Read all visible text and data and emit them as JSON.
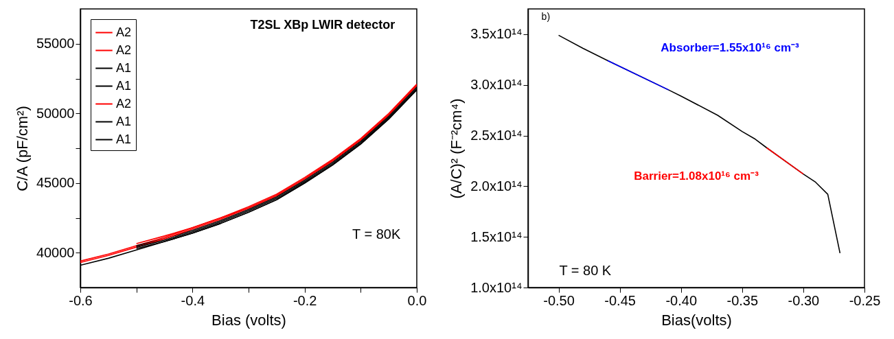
{
  "chart_data": [
    {
      "type": "line",
      "xlabel": "Bias (volts)",
      "ylabel": "C/A (pF/cm²)",
      "annotations": [
        "T2SL XBp LWIR detector",
        "T = 80K"
      ],
      "xlim": [
        -0.6,
        0
      ],
      "xticks": [
        -0.6,
        {
          "value": -0.5,
          "label": null
        },
        -0.4,
        {
          "value": -0.3,
          "label": null
        },
        -0.2,
        {
          "value": -0.1,
          "label": null
        },
        {
          "value": 0,
          "label": "0.0"
        }
      ],
      "ylim": [
        37500,
        57500
      ],
      "yticks": [
        40000,
        {
          "value": 42500,
          "label": null
        },
        45000,
        {
          "value": 47500,
          "label": null
        },
        50000,
        {
          "value": 52500,
          "label": null
        },
        55000
      ],
      "grid": false,
      "legend": "top left",
      "line_style": "solid",
      "marker": "none",
      "series": [
        {
          "name": "A2",
          "color": "#ff0000",
          "x": [
            -0.6,
            -0.55,
            -0.5,
            -0.45,
            -0.4,
            -0.35,
            -0.3,
            -0.25,
            -0.2,
            -0.15,
            -0.1,
            -0.05,
            0
          ],
          "values": [
            39400,
            39900,
            40500,
            41100,
            41800,
            42500,
            43300,
            44200,
            45400,
            46700,
            48200,
            50000,
            52100
          ]
        },
        {
          "name": "A2",
          "color": "#ff0000",
          "x": [
            -0.5,
            -0.45,
            -0.4,
            -0.35,
            -0.3,
            -0.25,
            -0.2,
            -0.15,
            -0.1,
            -0.05,
            0
          ],
          "values": [
            40650,
            41200,
            41800,
            42500,
            43200,
            44100,
            45300,
            46600,
            48100,
            49900,
            52000
          ]
        },
        {
          "name": "A1",
          "color": "#000000",
          "x": [
            -0.6,
            -0.55,
            -0.5,
            -0.45,
            -0.4,
            -0.35,
            -0.3,
            -0.25,
            -0.2,
            -0.15,
            -0.1,
            -0.05,
            0
          ],
          "values": [
            39100,
            39600,
            40200,
            40800,
            41400,
            42100,
            42900,
            43800,
            45000,
            46300,
            47800,
            49600,
            51700
          ]
        },
        {
          "name": "A1",
          "color": "#000000",
          "x": [
            -0.5,
            -0.45,
            -0.4,
            -0.35,
            -0.3,
            -0.25,
            -0.2,
            -0.15,
            -0.1,
            -0.05,
            0
          ],
          "values": [
            40500,
            41000,
            41600,
            42300,
            43100,
            44000,
            45200,
            46500,
            48000,
            49800,
            51900
          ]
        },
        {
          "name": "A2",
          "color": "#ff0000",
          "x": [
            -0.6,
            -0.55,
            -0.5,
            -0.45,
            -0.4,
            -0.35,
            -0.3,
            -0.25,
            -0.2,
            -0.15,
            -0.1,
            -0.05,
            0
          ],
          "values": [
            39300,
            39800,
            40400,
            41000,
            41700,
            42400,
            43200,
            44100,
            45300,
            46600,
            48100,
            49900,
            52000
          ]
        },
        {
          "name": "A1",
          "color": "#000000",
          "x": [
            -0.5,
            -0.45,
            -0.4,
            -0.35,
            -0.3,
            -0.25,
            -0.2,
            -0.15,
            -0.1,
            -0.05,
            0
          ],
          "values": [
            40300,
            40800,
            41400,
            42100,
            42900,
            43800,
            45000,
            46300,
            47800,
            49600,
            51700
          ]
        },
        {
          "name": "A1",
          "color": "#000000",
          "x": [
            -0.5,
            -0.45,
            -0.4,
            -0.35,
            -0.3,
            -0.25,
            -0.2,
            -0.15,
            -0.1,
            -0.05,
            0
          ],
          "values": [
            40400,
            40900,
            41500,
            42200,
            43000,
            43900,
            45100,
            46400,
            47900,
            49700,
            51800
          ]
        }
      ]
    },
    {
      "type": "line",
      "xlabel": "Bias(volts)",
      "ylabel": "(A/C)² (F⁻²cm⁴)",
      "annotations": [
        "b)",
        "Absorber=1.55x10¹⁶ cm⁻³",
        "Barrier=1.08x10¹⁶ cm⁻³",
        "T = 80 K"
      ],
      "xlim": [
        -0.525,
        -0.25
      ],
      "xticks": [
        {
          "value": -0.5,
          "label": "-0.50"
        },
        -0.45,
        {
          "value": -0.4,
          "label": "-0.40"
        },
        -0.35,
        {
          "value": -0.3,
          "label": "-0.30"
        },
        -0.25
      ],
      "ylim": [
        100000000000000.0,
        375000000000000.0
      ],
      "yticks": [
        {
          "value": 100000000000000.0,
          "label": "1.0x10¹⁴"
        },
        {
          "value": 150000000000000.0,
          "label": "1.5x10¹⁴"
        },
        {
          "value": 200000000000000.0,
          "label": "2.0x10¹⁴"
        },
        {
          "value": 250000000000000.0,
          "label": "2.5x10¹⁴"
        },
        {
          "value": 300000000000000.0,
          "label": "3.0x10¹⁴"
        },
        {
          "value": 350000000000000.0,
          "label": "3.5x10¹⁴"
        }
      ],
      "grid": false,
      "legend": false,
      "line_style": "solid",
      "marker": "none",
      "series": [
        {
          "color": "#000000",
          "x": [
            -0.5,
            -0.48,
            -0.46,
            -0.41,
            -0.4,
            -0.37,
            -0.35,
            -0.34,
            -0.33,
            -0.3,
            -0.29,
            -0.28,
            -0.27
          ],
          "values": [
            349000000000000.0,
            336000000000000.0,
            324000000000000.0,
            295000000000000.0,
            289000000000000.0,
            270000000000000.0,
            254000000000000.0,
            247000000000000.0,
            238000000000000.0,
            212000000000000.0,
            204000000000000.0,
            192000000000000.0,
            134000000000000.0
          ]
        },
        {
          "color": "#0000ff",
          "x": [
            -0.46,
            -0.41
          ],
          "values": [
            324000000000000.0,
            295000000000000.0
          ]
        },
        {
          "color": "#ff0000",
          "x": [
            -0.33,
            -0.3
          ],
          "values": [
            238000000000000.0,
            212000000000000.0
          ]
        }
      ]
    }
  ]
}
